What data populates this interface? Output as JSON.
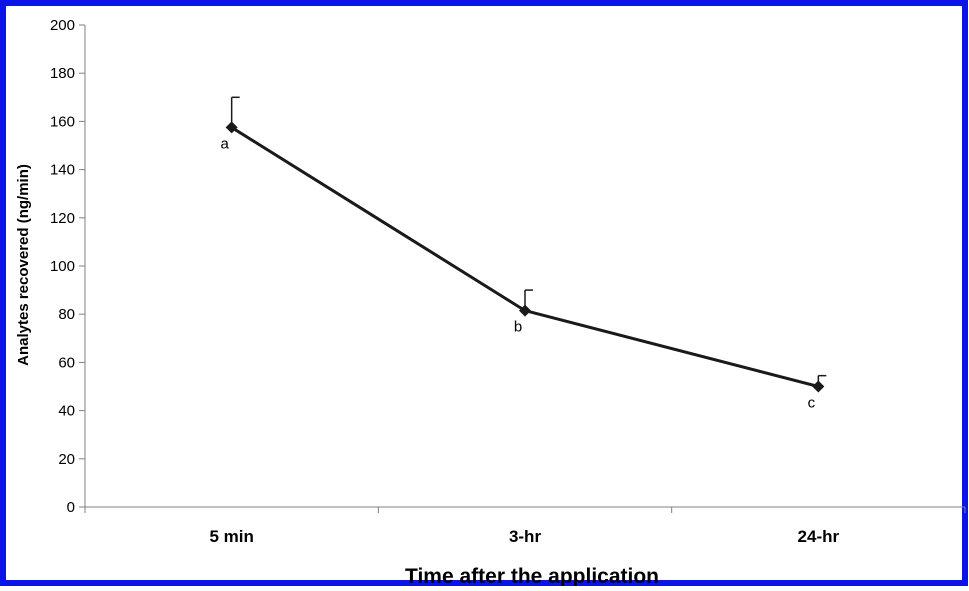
{
  "colors": {
    "frame": "#0a14e6",
    "line": "#1a1a1a",
    "axis": "#808080"
  },
  "chart_data": {
    "type": "line",
    "categories": [
      "5 min",
      "3-hr",
      "24-hr"
    ],
    "series": [
      {
        "values": [
          157.5,
          81.5,
          50
        ],
        "error_plus": [
          12.5,
          8.5,
          4.5
        ],
        "annotations": [
          "a",
          "b",
          "c"
        ]
      }
    ],
    "title": "",
    "xlabel": "Time after the application",
    "ylabel": "Analytes recovered (ng/min)",
    "ylim": [
      0,
      200
    ],
    "yticks": [
      0,
      20,
      40,
      60,
      80,
      100,
      120,
      140,
      160,
      180,
      200
    ],
    "grid": false,
    "marker": "diamond"
  }
}
